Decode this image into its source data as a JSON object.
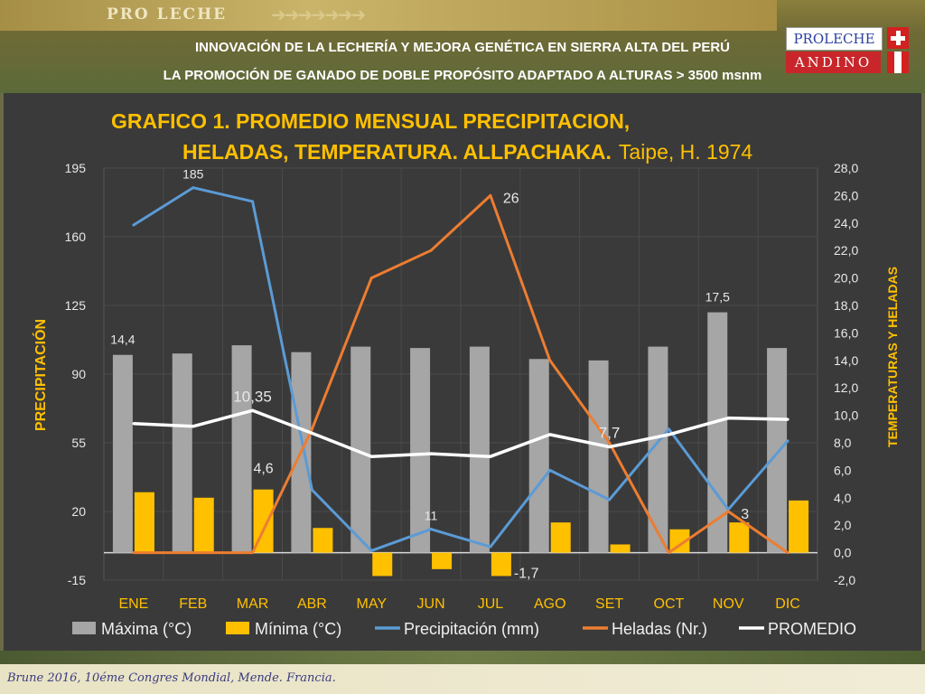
{
  "header": {
    "brand": "PRO LECHE",
    "subtitle1": "INNOVACIÓN DE LA LECHERÍA Y MEJORA GENÉTICA EN SIERRA ALTA DEL PERÚ",
    "subtitle2": "LA PROMOCIÓN DE GANADO DE DOBLE PROPÓSITO ADAPTADO A ALTURAS > 3500 msnm",
    "logo_top": "PROLECHE",
    "logo_bottom": "ANDINO"
  },
  "footer": {
    "citation": "Brune 2016, 10éme Congres Mondial, Mende. Francia."
  },
  "colors": {
    "maxima": "#a6a6a6",
    "minima": "#ffc000",
    "precipitacion": "#5b9bd5",
    "heladas": "#ed7d31",
    "promedio": "#ffffff",
    "title": "#ffc000"
  },
  "chart_data": {
    "type": "bar",
    "title_line1": "GRAFICO 1. PROMEDIO MENSUAL PRECIPITACION,",
    "title_line2": "HELADAS, TEMPERATURA. ALLPACHAKA.",
    "title_source": "Taipe, H. 1974",
    "ylabel": "PRECIPITACIÓN",
    "y2label": "TEMPERATURAS Y HELADAS",
    "ylim": [
      -15,
      195
    ],
    "y2lim": [
      -2,
      28
    ],
    "y_ticks": [
      "195",
      "160",
      "125",
      "90",
      "55",
      "20",
      "-15"
    ],
    "y2_ticks": [
      "28,0",
      "26,0",
      "24,0",
      "22,0",
      "20,0",
      "18,0",
      "16,0",
      "14,0",
      "12,0",
      "10,0",
      "8,0",
      "6,0",
      "4,0",
      "2,0",
      "0,0",
      "-2,0"
    ],
    "categories": [
      "ENE",
      "FEB",
      "MAR",
      "ABR",
      "MAY",
      "JUN",
      "JUL",
      "AGO",
      "SET",
      "OCT",
      "NOV",
      "DIC"
    ],
    "legend_position": "bottom",
    "series": [
      {
        "name": "Máxima (°C)",
        "kind": "bar",
        "axis": "right",
        "values": [
          14.4,
          14.5,
          15.1,
          14.6,
          15.0,
          14.9,
          15.0,
          14.1,
          14.0,
          15.0,
          17.5,
          14.9
        ]
      },
      {
        "name": "Mínima (°C)",
        "kind": "bar",
        "axis": "right",
        "values": [
          4.4,
          4.0,
          4.6,
          1.8,
          -1.7,
          -1.2,
          -1.7,
          2.2,
          0.6,
          1.7,
          2.2,
          3.8
        ]
      },
      {
        "name": "Precipitación (mm)",
        "kind": "line",
        "axis": "left",
        "values": [
          166,
          185,
          178,
          31,
          0,
          11,
          2,
          41,
          26,
          62,
          21,
          56
        ]
      },
      {
        "name": "Heladas (Nr.)",
        "kind": "line",
        "axis": "right",
        "values": [
          0,
          0,
          0,
          9,
          20,
          22,
          26,
          14,
          8,
          0,
          3,
          0
        ]
      },
      {
        "name": "PROMEDIO",
        "kind": "line",
        "axis": "right",
        "values": [
          9.4,
          9.2,
          10.35,
          8.7,
          7.0,
          7.2,
          7.0,
          8.6,
          7.7,
          8.6,
          9.8,
          9.7
        ]
      }
    ],
    "annotations": [
      {
        "series": "Máxima (°C)",
        "index": 0,
        "text": "14,4"
      },
      {
        "series": "Máxima (°C)",
        "index": 10,
        "text": "17,5"
      },
      {
        "series": "Mínima (°C)",
        "index": 2,
        "text": "4,6"
      },
      {
        "series": "Mínima (°C)",
        "index": 6,
        "text": "-1,7"
      },
      {
        "series": "Precipitación (mm)",
        "index": 1,
        "text": "185"
      },
      {
        "series": "Precipitación (mm)",
        "index": 5,
        "text": "11"
      },
      {
        "series": "Heladas (Nr.)",
        "index": 6,
        "text": "26"
      },
      {
        "series": "Heladas (Nr.)",
        "index": 10,
        "text": "3"
      },
      {
        "series": "PROMEDIO",
        "index": 2,
        "text": "10,35"
      },
      {
        "series": "PROMEDIO",
        "index": 8,
        "text": "7,7"
      }
    ]
  }
}
